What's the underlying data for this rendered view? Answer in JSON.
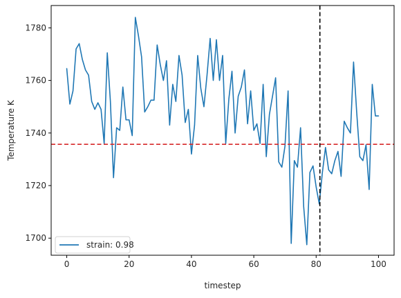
{
  "chart_data": {
    "type": "line",
    "xlabel": "timestep",
    "ylabel": "Temperature K",
    "xlim": [
      -5,
      105
    ],
    "ylim": [
      1693.5,
      1788.5
    ],
    "xticks": [
      0,
      20,
      40,
      60,
      80,
      100
    ],
    "yticks": [
      1700,
      1720,
      1740,
      1760,
      1780
    ],
    "grid": false,
    "legend_position": "lower-left",
    "series": [
      {
        "name": "strain: 0.98",
        "color": "#1f77b4",
        "x": [
          0,
          1,
          2,
          3,
          4,
          5,
          6,
          7,
          8,
          9,
          10,
          11,
          12,
          13,
          14,
          15,
          16,
          17,
          18,
          19,
          20,
          21,
          22,
          23,
          24,
          25,
          26,
          27,
          28,
          29,
          30,
          31,
          32,
          33,
          34,
          35,
          36,
          37,
          38,
          39,
          40,
          41,
          42,
          43,
          44,
          45,
          46,
          47,
          48,
          49,
          50,
          51,
          52,
          53,
          54,
          55,
          56,
          57,
          58,
          59,
          60,
          61,
          62,
          63,
          64,
          65,
          66,
          67,
          68,
          69,
          70,
          71,
          72,
          73,
          74,
          75,
          76,
          77,
          78,
          79,
          80,
          81,
          82,
          83,
          84,
          85,
          86,
          87,
          88,
          89,
          90,
          91,
          92,
          93,
          94,
          95,
          96,
          97,
          98,
          99,
          100
        ],
        "y": [
          1764.5,
          1751,
          1756,
          1772,
          1774,
          1768,
          1764,
          1762,
          1752,
          1749,
          1751.5,
          1749,
          1736,
          1770.5,
          1752,
          1723,
          1742,
          1741,
          1757.5,
          1745,
          1745,
          1739,
          1784,
          1777,
          1769,
          1748,
          1750,
          1752.5,
          1752.5,
          1773.5,
          1766,
          1760,
          1767.5,
          1743,
          1758.5,
          1752,
          1769.5,
          1762,
          1744,
          1749,
          1732,
          1743,
          1769.5,
          1757,
          1750,
          1762,
          1776,
          1760,
          1775.5,
          1760,
          1769.5,
          1736,
          1753,
          1763.5,
          1740,
          1754,
          1757.5,
          1764,
          1743.5,
          1756,
          1741,
          1743.5,
          1736,
          1758.5,
          1731,
          1747,
          1754,
          1761,
          1729,
          1727,
          1735,
          1756,
          1698,
          1729.5,
          1727,
          1742,
          1712,
          1697.5,
          1725,
          1727.5,
          1719.5,
          1713,
          1725,
          1734.5,
          1726,
          1724.5,
          1729.5,
          1733,
          1723.5,
          1744.5,
          1742,
          1740,
          1767,
          1748,
          1731,
          1729.5,
          1735.5,
          1718.5,
          1758.5,
          1746.5,
          1746.5
        ]
      }
    ],
    "reference_lines": [
      {
        "orientation": "horizontal",
        "value": 1735.7,
        "color": "#d62728",
        "style": "dashed"
      },
      {
        "orientation": "vertical",
        "value": 81.2,
        "color": "#000000",
        "style": "dashed"
      }
    ]
  }
}
